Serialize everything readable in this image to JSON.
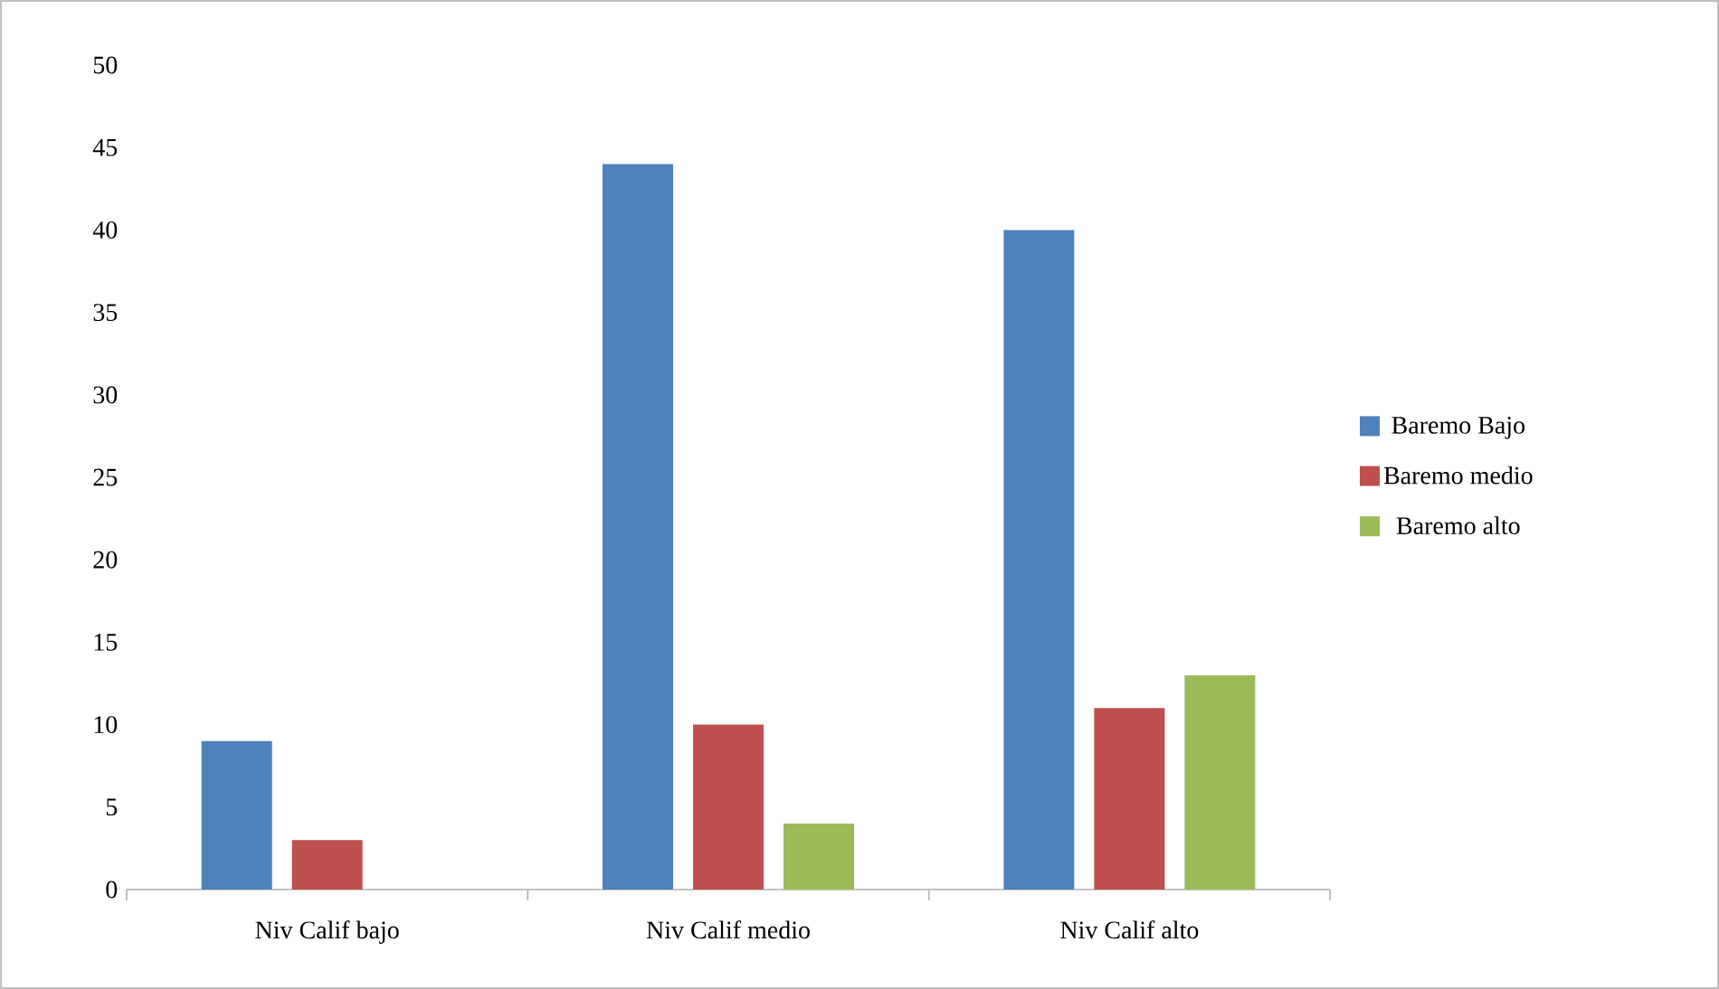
{
  "chart_data": {
    "type": "bar",
    "categories": [
      "Niv Calif bajo",
      "Niv Calif medio",
      "Niv Calif alto"
    ],
    "series": [
      {
        "name": "Baremo Bajo",
        "color": "#4f81bd",
        "values": [
          9,
          44,
          40
        ]
      },
      {
        "name": "Baremo medio",
        "color": "#c0504d",
        "values": [
          3,
          10,
          11
        ]
      },
      {
        "name": "Baremo alto",
        "color": "#9bbb59",
        "values": [
          null,
          4,
          13
        ]
      }
    ],
    "ylim": [
      0,
      50
    ],
    "yticks": [
      0,
      5,
      10,
      15,
      20,
      25,
      30,
      35,
      40,
      45,
      50
    ],
    "grid": false,
    "legend": "right"
  }
}
